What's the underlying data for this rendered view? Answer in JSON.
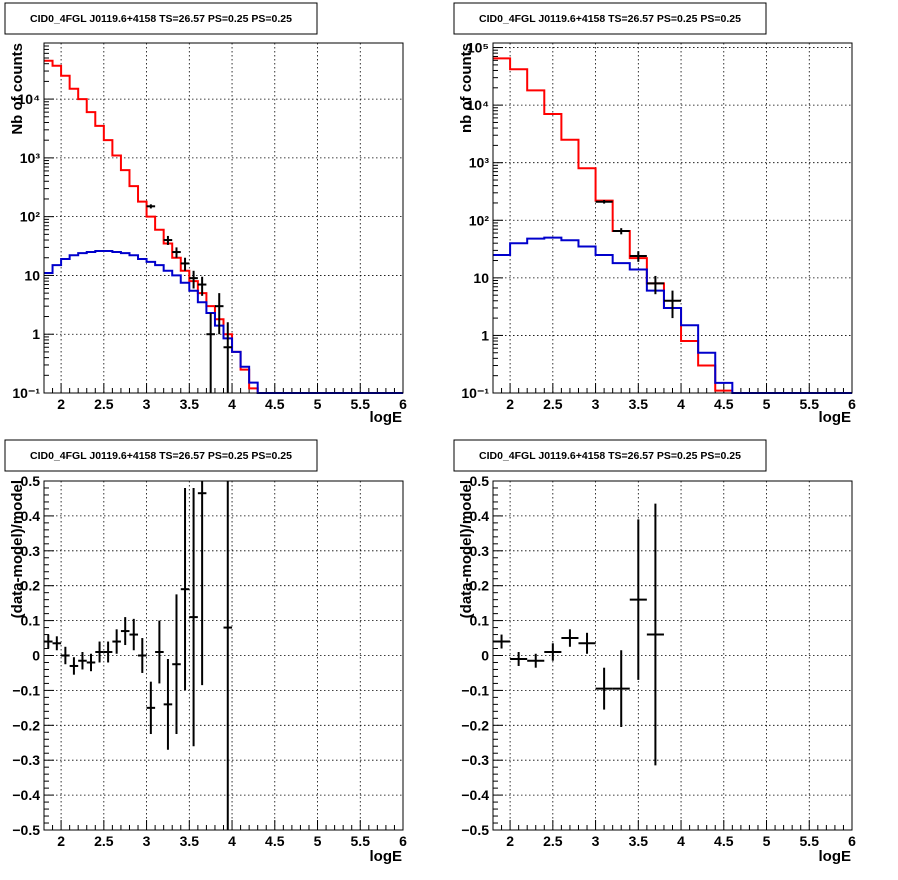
{
  "colors": {
    "data": "#000000",
    "model": "#ff0000",
    "background": "#0000cc"
  },
  "chart_data": [
    {
      "type": "line",
      "title": "CID0_4FGL J0119.6+4158 TS=26.57 PS=0.25 PS=0.25",
      "xlabel": "logE",
      "ylabel": "Nb of counts",
      "yscale": "log",
      "xlim": [
        1.8,
        6.0
      ],
      "ylim": [
        0.1,
        90000
      ],
      "xticks": [
        "2",
        "2.5",
        "3",
        "3.5",
        "4",
        "4.5",
        "5",
        "5.5",
        "6"
      ],
      "yticks": [
        "10⁻¹",
        "1",
        "10",
        "10²",
        "10³",
        "10⁴"
      ],
      "grid": true,
      "binwidth": 0.1,
      "series": [
        {
          "role": "model",
          "color": "#ff0000",
          "x": [
            1.8,
            1.9,
            2.0,
            2.1,
            2.2,
            2.3,
            2.4,
            2.5,
            2.6,
            2.7,
            2.8,
            2.9,
            3.0,
            3.1,
            3.2,
            3.3,
            3.4,
            3.5,
            3.6,
            3.7,
            3.8,
            3.9,
            4.0,
            4.1,
            4.2,
            4.3
          ],
          "values": [
            45000,
            37000,
            25000,
            15000,
            10000,
            6000,
            3500,
            2000,
            1100,
            620,
            330,
            180,
            100,
            60,
            35,
            20,
            12,
            8,
            5,
            3,
            1.8,
            1.0,
            0.5,
            0.25,
            0.12,
            0.1
          ]
        },
        {
          "role": "background",
          "color": "#0000cc",
          "x": [
            1.8,
            1.9,
            2.0,
            2.1,
            2.2,
            2.3,
            2.4,
            2.5,
            2.6,
            2.7,
            2.8,
            2.9,
            3.0,
            3.1,
            3.2,
            3.3,
            3.4,
            3.5,
            3.6,
            3.7,
            3.8,
            3.9,
            4.0,
            4.1,
            4.2,
            4.3,
            4.4,
            4.5,
            4.6,
            4.7,
            4.8,
            4.9,
            5.0,
            5.1,
            5.2,
            5.3,
            5.4,
            5.5,
            5.6,
            5.7,
            5.8,
            5.9
          ],
          "values": [
            11,
            15,
            19,
            22,
            24,
            25,
            26,
            26,
            25,
            24,
            22,
            19,
            17,
            15,
            12,
            10,
            7.5,
            5.5,
            3.5,
            2.3,
            1.4,
            0.85,
            0.5,
            0.28,
            0.15,
            0.1,
            0.1,
            0.1,
            0.1,
            0.1,
            0.1,
            0.1,
            0.1,
            0.1,
            0.1,
            0.1,
            0.1,
            0.1,
            0.1,
            0.1,
            0.1,
            0.1
          ]
        },
        {
          "role": "data",
          "color": "#000000",
          "x": [
            3.05,
            3.25,
            3.35,
            3.45,
            3.55,
            3.65,
            3.75,
            3.85,
            3.95
          ],
          "values": [
            150,
            40,
            25,
            16,
            9,
            7,
            1,
            3,
            0.6
          ],
          "err_lo": [
            12,
            7,
            5,
            4,
            3,
            2.5,
            0.9,
            2,
            0.5
          ],
          "err_hi": [
            12,
            7,
            5,
            4,
            3,
            2.5,
            1.3,
            2,
            1.0
          ]
        }
      ]
    },
    {
      "type": "line",
      "title": "CID0_4FGL J0119.6+4158 TS=26.57 PS=0.25 PS=0.25",
      "xlabel": "logE",
      "ylabel": "nb of counts",
      "yscale": "log",
      "xlim": [
        1.8,
        6.0
      ],
      "ylim": [
        0.1,
        120000
      ],
      "xticks": [
        "2",
        "2.5",
        "3",
        "3.5",
        "4",
        "4.5",
        "5",
        "5.5",
        "6"
      ],
      "yticks": [
        "10⁻¹",
        "1",
        "10",
        "10²",
        "10³",
        "10⁴",
        "10⁵"
      ],
      "grid": true,
      "binwidth": 0.2,
      "series": [
        {
          "role": "model",
          "color": "#ff0000",
          "x": [
            1.8,
            2.0,
            2.2,
            2.4,
            2.6,
            2.8,
            3.0,
            3.2,
            3.4,
            3.6,
            3.8,
            4.0,
            4.2,
            4.4
          ],
          "values": [
            65000,
            42000,
            18000,
            7000,
            2500,
            800,
            220,
            65,
            22,
            8,
            3,
            0.8,
            0.3,
            0.11
          ]
        },
        {
          "role": "background",
          "color": "#0000cc",
          "x": [
            1.8,
            2.0,
            2.2,
            2.4,
            2.6,
            2.8,
            3.0,
            3.2,
            3.4,
            3.6,
            3.8,
            4.0,
            4.2,
            4.4,
            4.6,
            4.8,
            5.0,
            5.2,
            5.4,
            5.6,
            5.8
          ],
          "values": [
            25,
            40,
            48,
            50,
            45,
            35,
            25,
            18,
            14,
            6,
            3,
            1.5,
            0.5,
            0.15,
            0.1,
            0.1,
            0.1,
            0.1,
            0.1,
            0.1,
            0.1
          ]
        },
        {
          "role": "data",
          "color": "#000000",
          "x": [
            3.1,
            3.3,
            3.5,
            3.7,
            3.9
          ],
          "values": [
            210,
            65,
            24,
            8,
            4
          ],
          "err_lo": [
            15,
            8,
            5,
            2.8,
            2
          ],
          "err_hi": [
            15,
            8,
            5,
            2.8,
            2
          ]
        }
      ]
    },
    {
      "type": "scatter",
      "title": "CID0_4FGL J0119.6+4158 TS=26.57 PS=0.25 PS=0.25",
      "xlabel": "logE",
      "ylabel": "(data-model)/model",
      "xlim": [
        1.8,
        6.0
      ],
      "ylim": [
        -0.5,
        0.5
      ],
      "xticks": [
        "2",
        "2.5",
        "3",
        "3.5",
        "4",
        "4.5",
        "5",
        "5.5",
        "6"
      ],
      "yticks": [
        "−0.5",
        "−0.4",
        "−0.3",
        "−0.2",
        "−0.1",
        "0",
        "0.1",
        "0.2",
        "0.3",
        "0.4",
        "0.5"
      ],
      "grid": true,
      "xerr": 0.05,
      "series": [
        {
          "role": "residual",
          "color": "#000000",
          "x": [
            1.85,
            1.95,
            2.05,
            2.15,
            2.25,
            2.35,
            2.45,
            2.55,
            2.65,
            2.75,
            2.85,
            2.95,
            3.05,
            3.15,
            3.25,
            3.35,
            3.45,
            3.55,
            3.65,
            3.95
          ],
          "values": [
            0.04,
            0.035,
            0.0,
            -0.03,
            -0.015,
            -0.02,
            0.01,
            0.01,
            0.04,
            0.07,
            0.06,
            0.0,
            -0.15,
            0.01,
            -0.14,
            -0.025,
            0.19,
            0.11,
            0.465,
            0.08
          ],
          "err": [
            0.02,
            0.02,
            0.025,
            0.025,
            0.025,
            0.025,
            0.03,
            0.03,
            0.035,
            0.04,
            0.045,
            0.05,
            0.075,
            0.09,
            0.13,
            0.2,
            0.29,
            0.37,
            0.55,
            0.6
          ]
        }
      ]
    },
    {
      "type": "scatter",
      "title": "CID0_4FGL J0119.6+4158 TS=26.57 PS=0.25 PS=0.25",
      "xlabel": "logE",
      "ylabel": "(data-model)/model",
      "xlim": [
        1.8,
        6.0
      ],
      "ylim": [
        -0.5,
        0.5
      ],
      "xticks": [
        "2",
        "2.5",
        "3",
        "3.5",
        "4",
        "4.5",
        "5",
        "5.5",
        "6"
      ],
      "yticks": [
        "−0.5",
        "−0.4",
        "−0.3",
        "−0.2",
        "−0.1",
        "0",
        "0.1",
        "0.2",
        "0.3",
        "0.4",
        "0.5"
      ],
      "grid": true,
      "xerr": 0.1,
      "series": [
        {
          "role": "residual",
          "color": "#000000",
          "x": [
            1.9,
            2.1,
            2.3,
            2.5,
            2.7,
            2.9,
            3.1,
            3.3,
            3.5,
            3.7
          ],
          "values": [
            0.04,
            -0.01,
            -0.015,
            0.01,
            0.05,
            0.035,
            -0.095,
            -0.095,
            0.16,
            0.06
          ],
          "err": [
            0.02,
            0.02,
            0.02,
            0.025,
            0.025,
            0.03,
            0.06,
            0.11,
            0.23,
            0.375
          ]
        }
      ]
    }
  ]
}
